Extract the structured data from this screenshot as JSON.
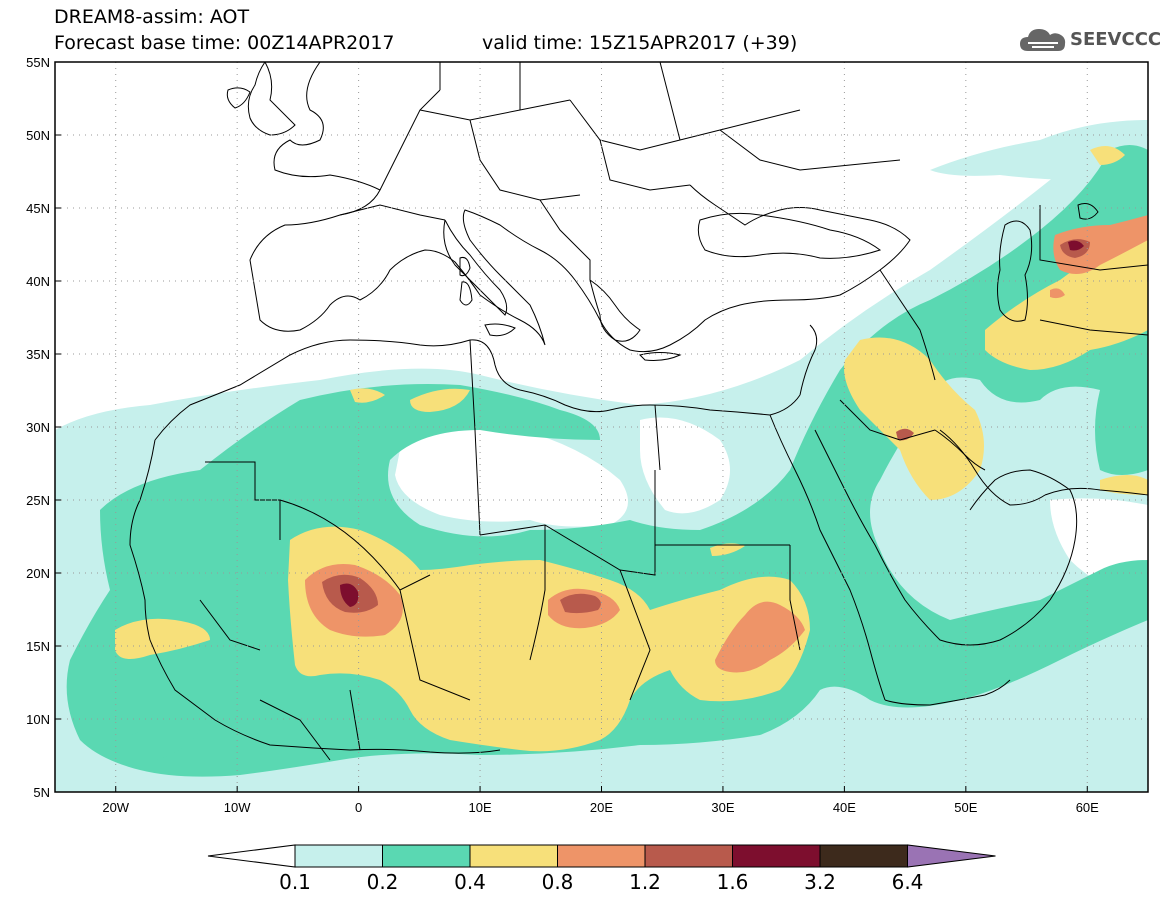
{
  "header": {
    "title": "DREAM8-assim: AOT",
    "base_time": "Forecast base time: 00Z14APR2017",
    "valid_time": "valid time: 15Z15APR2017 (+39)"
  },
  "logo": {
    "text": "SEEVCCC",
    "icon": "cloud-icon"
  },
  "axes": {
    "lat_labels": [
      "55N",
      "50N",
      "45N",
      "40N",
      "35N",
      "30N",
      "25N",
      "20N",
      "15N",
      "10N",
      "5N"
    ],
    "lat_values": [
      55,
      50,
      45,
      40,
      35,
      30,
      25,
      20,
      15,
      10,
      5
    ],
    "lon_labels": [
      "20W",
      "10W",
      "0",
      "10E",
      "20E",
      "30E",
      "40E",
      "50E",
      "60E"
    ],
    "lon_values": [
      -20,
      -10,
      0,
      10,
      20,
      30,
      40,
      50,
      60
    ],
    "lon_range": [
      -25,
      65
    ],
    "lat_range": [
      5,
      55
    ],
    "grid": "dotted"
  },
  "legend": {
    "levels": [
      "0.1",
      "0.2",
      "0.4",
      "0.8",
      "1.2",
      "1.6",
      "3.2",
      "6.4"
    ],
    "colors": [
      "#c6f0ec",
      "#5ad8b2",
      "#f7e07a",
      "#ee9468",
      "#b85a4c",
      "#7d0e2e",
      "#3d2a1c",
      "#9a73b4"
    ],
    "min_color": "#ffffff",
    "max_color": "#9a73b4"
  }
}
